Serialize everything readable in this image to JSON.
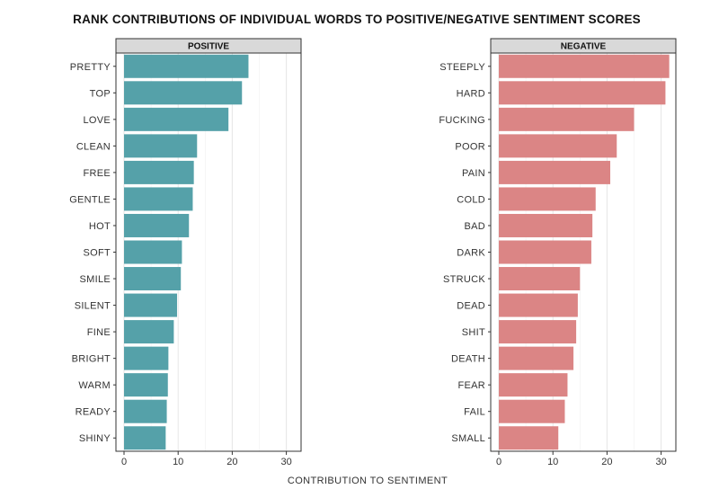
{
  "chart_data": {
    "type": "bar",
    "orientation": "horizontal",
    "title": "RANK CONTRIBUTIONS OF INDIVIDUAL WORDS TO POSITIVE/NEGATIVE SENTIMENT SCORES",
    "xlabel": "CONTRIBUTION TO SENTIMENT",
    "ylabel": "",
    "xlim": [
      0,
      32
    ],
    "xticks": [
      0,
      10,
      20,
      30
    ],
    "grid": true,
    "panels": [
      {
        "name": "POSITIVE",
        "color": "#55a1a9",
        "categories": [
          "PRETTY",
          "TOP",
          "LOVE",
          "CLEAN",
          "FREE",
          "GENTLE",
          "HOT",
          "SOFT",
          "SMILE",
          "SILENT",
          "FINE",
          "BRIGHT",
          "WARM",
          "READY",
          "SHINY"
        ],
        "values": [
          23,
          21.8,
          19.3,
          13.5,
          12.9,
          12.7,
          12,
          10.7,
          10.5,
          9.8,
          9.2,
          8.2,
          8.1,
          7.9,
          7.7
        ]
      },
      {
        "name": "NEGATIVE",
        "color": "#db8585",
        "categories": [
          "STEEPLY",
          "HARD",
          "FUCKING",
          "POOR",
          "PAIN",
          "COLD",
          "BAD",
          "DARK",
          "STRUCK",
          "DEAD",
          "SHIT",
          "DEATH",
          "FEAR",
          "FAIL",
          "SMALL"
        ],
        "values": [
          31.5,
          30.8,
          25,
          21.8,
          20.6,
          17.9,
          17.3,
          17.1,
          15,
          14.6,
          14.3,
          13.8,
          12.7,
          12.2,
          11
        ]
      }
    ]
  }
}
